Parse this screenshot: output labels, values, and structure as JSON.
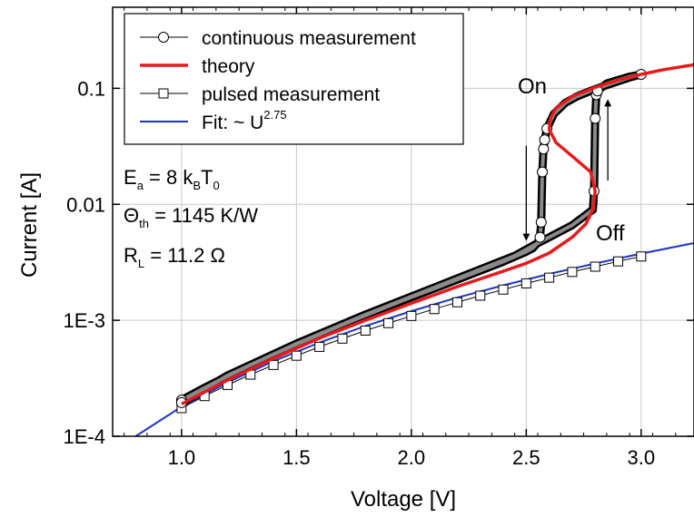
{
  "chart_data": {
    "type": "line",
    "xlabel": "Voltage [V]",
    "ylabel": "Current [A]",
    "xlim": [
      0.7,
      3.23
    ],
    "ylim": [
      0.0001,
      0.5
    ],
    "y_scale": "log",
    "grid": true,
    "legend_position": "top-left",
    "x_ticks": [
      1.0,
      1.5,
      2.0,
      2.5,
      3.0
    ],
    "x_tick_labels": [
      "1.0",
      "1.5",
      "2.0",
      "2.5",
      "3.0"
    ],
    "y_ticks": [
      0.0001,
      0.001,
      0.01,
      0.1
    ],
    "y_tick_labels": [
      "1E-4",
      "1E-3",
      "0.01",
      "0.1"
    ],
    "legend": {
      "continuous": "continuous measurement",
      "theory": "theory",
      "pulsed": "pulsed measurement",
      "fit": "Fit: ~ U",
      "fit_exponent": "2.75"
    },
    "parameters": {
      "ea": {
        "symbol": "E",
        "sub": "a",
        "eq": " = 8 k",
        "sub2": "B",
        "tail": "T",
        "sub3": "0"
      },
      "theta": {
        "symbol": "Θ",
        "sub": "th",
        "tail": " = 1145 K/W"
      },
      "rl": {
        "symbol": "R",
        "sub": "L",
        "tail": " = 11.2 Ω"
      }
    },
    "annotations": {
      "on": "On",
      "off": "Off"
    },
    "series": [
      {
        "key": "continuous",
        "color": "#000000",
        "marker": "circle",
        "points": [
          [
            1.0,
            0.000205
          ],
          [
            1.1,
            0.000262
          ],
          [
            1.2,
            0.00033
          ],
          [
            1.3,
            0.000412
          ],
          [
            1.4,
            0.000508
          ],
          [
            1.5,
            0.00062
          ],
          [
            1.6,
            0.000755
          ],
          [
            1.7,
            0.000915
          ],
          [
            1.8,
            0.0011
          ],
          [
            1.9,
            0.00132
          ],
          [
            2.0,
            0.00158
          ],
          [
            2.1,
            0.00188
          ],
          [
            2.2,
            0.00224
          ],
          [
            2.3,
            0.00268
          ],
          [
            2.4,
            0.0032
          ],
          [
            2.5,
            0.0039
          ],
          [
            2.53,
            0.0042
          ],
          [
            2.55,
            0.0047
          ],
          [
            2.56,
            0.0052
          ],
          [
            2.565,
            0.007
          ],
          [
            2.57,
            0.019
          ],
          [
            2.575,
            0.03
          ],
          [
            2.58,
            0.036
          ],
          [
            2.59,
            0.045
          ],
          [
            2.62,
            0.06
          ],
          [
            2.67,
            0.075
          ],
          [
            2.72,
            0.085
          ],
          [
            2.78,
            0.095
          ],
          [
            2.84,
            0.105
          ],
          [
            2.9,
            0.115
          ],
          [
            2.95,
            0.124
          ],
          [
            3.0,
            0.132
          ],
          [
            2.95,
            0.126
          ],
          [
            2.9,
            0.118
          ],
          [
            2.85,
            0.11
          ],
          [
            2.81,
            0.095
          ],
          [
            2.805,
            0.088
          ],
          [
            2.8,
            0.055
          ],
          [
            2.795,
            0.013
          ],
          [
            2.79,
            0.009
          ],
          [
            2.7,
            0.0066
          ],
          [
            2.6,
            0.0052
          ],
          [
            2.53,
            0.0044
          ],
          [
            2.45,
            0.0036
          ],
          [
            2.3,
            0.00275
          ],
          [
            2.1,
            0.00192
          ],
          [
            1.8,
            0.00112
          ],
          [
            1.5,
            0.00063
          ],
          [
            1.2,
            0.000335
          ],
          [
            1.0,
            0.000195
          ]
        ],
        "markers": [
          [
            1.0,
            0.000205
          ],
          [
            1.0,
            0.000195
          ],
          [
            2.56,
            0.0052
          ],
          [
            2.565,
            0.007
          ],
          [
            2.57,
            0.019
          ],
          [
            2.575,
            0.03
          ],
          [
            2.58,
            0.036
          ],
          [
            2.59,
            0.045
          ],
          [
            2.8,
            0.055
          ],
          [
            2.795,
            0.013
          ],
          [
            2.805,
            0.088
          ],
          [
            2.81,
            0.095
          ],
          [
            3.0,
            0.132
          ]
        ]
      },
      {
        "key": "theory",
        "color": "#e8191c",
        "points": [
          [
            1.0,
            0.00019
          ],
          [
            1.2,
            0.000305
          ],
          [
            1.4,
            0.00047
          ],
          [
            1.6,
            0.0007
          ],
          [
            1.8,
            0.001
          ],
          [
            2.0,
            0.0014
          ],
          [
            2.2,
            0.00195
          ],
          [
            2.4,
            0.00265
          ],
          [
            2.5,
            0.0031
          ],
          [
            2.6,
            0.0038
          ],
          [
            2.7,
            0.0052
          ],
          [
            2.76,
            0.0068
          ],
          [
            2.79,
            0.009
          ],
          [
            2.8,
            0.013
          ],
          [
            2.78,
            0.019
          ],
          [
            2.7,
            0.026
          ],
          [
            2.63,
            0.034
          ],
          [
            2.6,
            0.044
          ],
          [
            2.605,
            0.055
          ],
          [
            2.63,
            0.068
          ],
          [
            2.7,
            0.085
          ],
          [
            2.8,
            0.102
          ],
          [
            2.9,
            0.118
          ],
          [
            3.0,
            0.132
          ],
          [
            3.1,
            0.145
          ],
          [
            3.23,
            0.16
          ]
        ]
      },
      {
        "key": "pulsed",
        "color": "#000000",
        "marker": "square",
        "points": [
          [
            1.0,
            0.000175
          ],
          [
            1.1,
            0.000222
          ],
          [
            1.2,
            0.000277
          ],
          [
            1.3,
            0.00034
          ],
          [
            1.4,
            0.000412
          ],
          [
            1.5,
            0.000495
          ],
          [
            1.6,
            0.00059
          ],
          [
            1.7,
            0.000695
          ],
          [
            1.8,
            0.000815
          ],
          [
            1.9,
            0.000945
          ],
          [
            2.0,
            0.00109
          ],
          [
            2.1,
            0.00125
          ],
          [
            2.2,
            0.00143
          ],
          [
            2.3,
            0.00163
          ],
          [
            2.4,
            0.00184
          ],
          [
            2.5,
            0.00208
          ],
          [
            2.6,
            0.00233
          ],
          [
            2.7,
            0.00261
          ],
          [
            2.8,
            0.0029
          ],
          [
            2.9,
            0.00322
          ],
          [
            3.0,
            0.00355
          ]
        ]
      },
      {
        "key": "fit",
        "color": "#1d36c6",
        "points": [
          [
            0.8,
            0.0001
          ],
          [
            1.0,
            0.00018
          ],
          [
            1.2,
            0.000291
          ],
          [
            1.4,
            0.000444
          ],
          [
            1.6,
            0.000642
          ],
          [
            1.8,
            0.000893
          ],
          [
            2.0,
            0.0012
          ],
          [
            2.2,
            0.00157
          ],
          [
            2.4,
            0.002
          ],
          [
            2.6,
            0.00251
          ],
          [
            2.8,
            0.00309
          ],
          [
            3.0,
            0.00376
          ],
          [
            3.23,
            0.00463
          ]
        ]
      }
    ],
    "arrows": [
      {
        "from": [
          2.5,
          0.032
        ],
        "to": [
          2.5,
          0.0052
        ]
      },
      {
        "from": [
          2.855,
          0.016
        ],
        "to": [
          2.855,
          0.075
        ]
      }
    ]
  }
}
